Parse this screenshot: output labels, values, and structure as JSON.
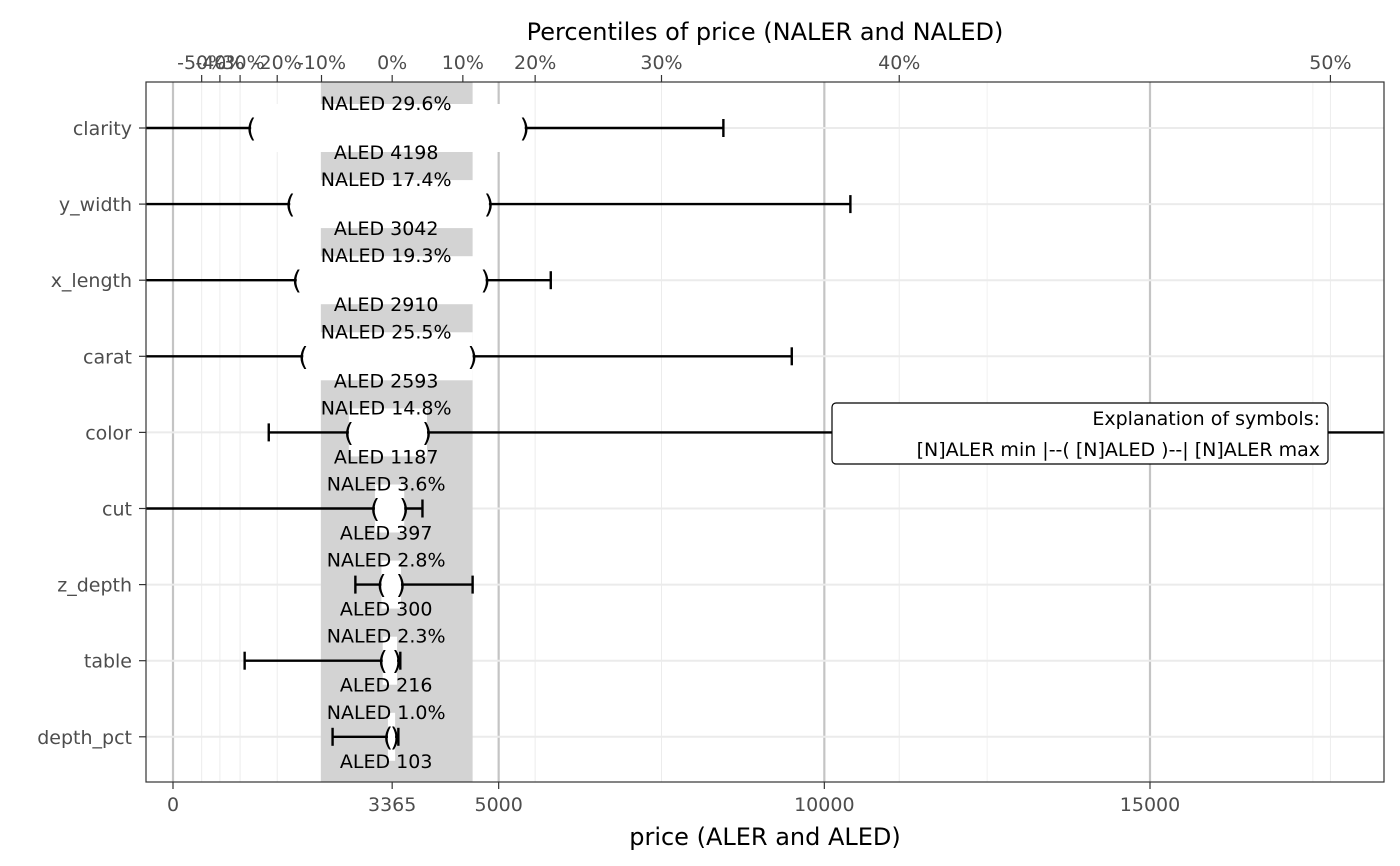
{
  "chart_data": {
    "type": "ale_interval",
    "title": "Percentiles of price (NALER and NALED)",
    "xlabel": "price (ALER and ALED)",
    "xlim": [
      -400,
      18100
    ],
    "x_ticks": [
      0,
      3365,
      5000,
      10000,
      15000
    ],
    "x_tick_labels": [
      "0",
      "3365",
      "5000",
      "10000",
      "15000"
    ],
    "median": 3365,
    "band": [
      2270,
      4600
    ],
    "percentile_ticks": [
      {
        "label": "-50%",
        "x": 440
      },
      {
        "label": "-40%",
        "x": 720
      },
      {
        "label": "-30%",
        "x": 1030
      },
      {
        "label": "-20%",
        "x": 1600
      },
      {
        "label": "-10%",
        "x": 2280
      },
      {
        "label": "0%",
        "x": 3365
      },
      {
        "label": "10%",
        "x": 4450
      },
      {
        "label": "20%",
        "x": 5560
      },
      {
        "label": "30%",
        "x": 7500
      },
      {
        "label": "40%",
        "x": 11150
      },
      {
        "label": "50%",
        "x": 17770
      }
    ],
    "grid": true,
    "legend": {
      "position": "right-middle",
      "line1": "Explanation of symbols:",
      "line2": "[N]ALER min |--( [N]ALED )--| [N]ALER max"
    },
    "rows": [
      {
        "variable": "clarity",
        "naler_min": null,
        "naler_max": 8450,
        "aled_lo": 1200,
        "aled_hi": 5400,
        "naled_label": "NALED 29.6%",
        "aled_label": "ALED 4198"
      },
      {
        "variable": "y_width",
        "naler_min": null,
        "naler_max": 10400,
        "aled_lo": 1800,
        "aled_hi": 4850,
        "naled_label": "NALED 17.4%",
        "aled_label": "ALED 3042"
      },
      {
        "variable": "x_length",
        "naler_min": null,
        "naler_max": 5800,
        "aled_lo": 1900,
        "aled_hi": 4800,
        "naled_label": "NALED 19.3%",
        "aled_label": "ALED 2910"
      },
      {
        "variable": "carat",
        "naler_min": null,
        "naler_max": 9500,
        "aled_lo": 2000,
        "aled_hi": 4600,
        "naled_label": "NALED 25.5%",
        "aled_label": "ALED 2593"
      },
      {
        "variable": "color",
        "naler_min": 1470,
        "naler_max": null,
        "aled_lo": 2700,
        "aled_hi": 3900,
        "naled_label": "NALED 14.8%",
        "aled_label": "ALED 1187"
      },
      {
        "variable": "cut",
        "naler_min": null,
        "naler_max": 3830,
        "aled_lo": 3100,
        "aled_hi": 3550,
        "naled_label": "NALED  3.6%",
        "aled_label": "ALED  397"
      },
      {
        "variable": "z_depth",
        "naler_min": 2800,
        "naler_max": 4600,
        "aled_lo": 3200,
        "aled_hi": 3500,
        "naled_label": "NALED  2.8%",
        "aled_label": "ALED  300"
      },
      {
        "variable": "table",
        "naler_min": 1100,
        "naler_max": 3490,
        "aled_lo": 3220,
        "aled_hi": 3440,
        "naled_label": "NALED  2.3%",
        "aled_label": "ALED  216"
      },
      {
        "variable": "depth_pct",
        "naler_min": 2450,
        "naler_max": 3460,
        "aled_lo": 3300,
        "aled_hi": 3410,
        "naled_label": "NALED  1.0%",
        "aled_label": "ALED  103"
      }
    ]
  }
}
